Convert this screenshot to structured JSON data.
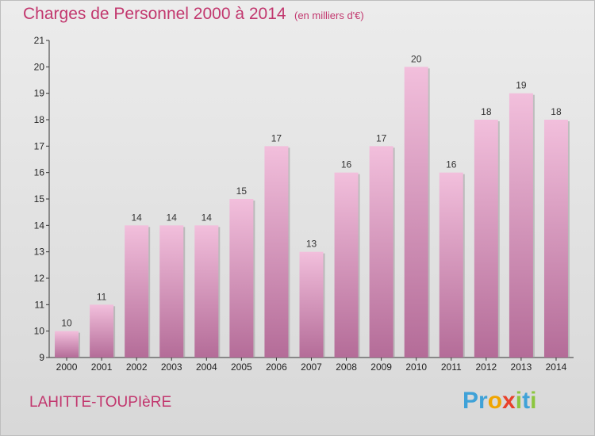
{
  "header": {
    "title": "Charges de Personnel 2000 à 2014",
    "subtitle": "(en milliers d'€)"
  },
  "footer": {
    "place": "LAHITTE-TOUPIèRE",
    "logo_letters": [
      "P",
      "r",
      "o",
      "x",
      "i",
      "t",
      "i"
    ],
    "logo_colors": [
      "#3fa2d8",
      "#3fa2d8",
      "#f0a500",
      "#e8412b",
      "#8cc63f",
      "#3fa2d8",
      "#8cc63f"
    ]
  },
  "colors": {
    "bar_light": "#f2bfdc",
    "bar_dark": "#b46c98",
    "bar_shadow": "#9b9b9b",
    "axis": "#333333",
    "grid": "#bdbdbd"
  },
  "chart_data": {
    "type": "bar",
    "title": "Charges de Personnel 2000 à 2014",
    "subtitle": "(en milliers d'€)",
    "xlabel": "",
    "ylabel": "",
    "categories": [
      "2000",
      "2001",
      "2002",
      "2003",
      "2004",
      "2005",
      "2006",
      "2007",
      "2008",
      "2009",
      "2010",
      "2011",
      "2012",
      "2013",
      "2014"
    ],
    "values": [
      10,
      11,
      14,
      14,
      14,
      15,
      17,
      13,
      16,
      17,
      20,
      16,
      18,
      19,
      18
    ],
    "ylim": [
      9,
      21
    ],
    "yticks": [
      9,
      10,
      11,
      12,
      13,
      14,
      15,
      16,
      17,
      18,
      19,
      20,
      21
    ],
    "grid": false,
    "legend": "none"
  }
}
